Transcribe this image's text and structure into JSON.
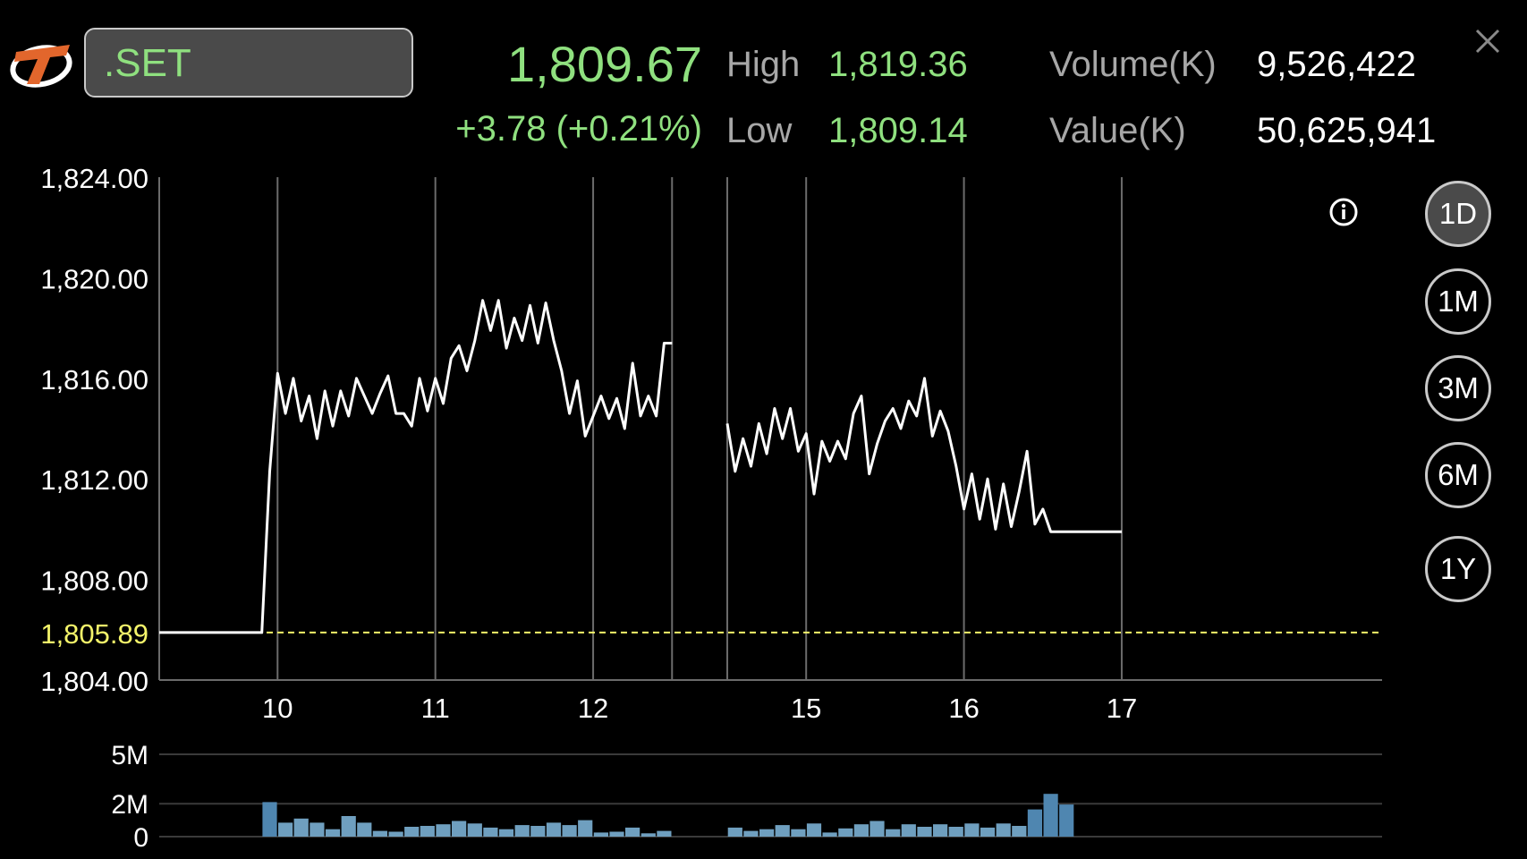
{
  "header": {
    "symbol": ".SET",
    "last": "1,809.67",
    "change": "+3.78 (+0.21%)",
    "high_label": "High",
    "high_value": "1,819.36",
    "low_label": "Low",
    "low_value": "1,809.14",
    "volume_label": "Volume(K)",
    "volume_value": "9,526,422",
    "value_label": "Value(K)",
    "value_value": "50,625,941"
  },
  "periods": [
    {
      "label": "1D",
      "active": true
    },
    {
      "label": "1M",
      "active": false
    },
    {
      "label": "3M",
      "active": false
    },
    {
      "label": "6M",
      "active": false
    },
    {
      "label": "1Y",
      "active": false
    }
  ],
  "icons": {
    "logo": "brand-logo-icon",
    "close": "close-icon",
    "info": "info-icon"
  },
  "colors": {
    "up": "#8fe07f",
    "line": "#ffffff",
    "prev_close": "#f4f46a",
    "volume_bar": "#4f86b0",
    "volume_bar_light": "#6f9fbf",
    "grid": "#6b6b6b"
  },
  "chart_data": [
    {
      "type": "line",
      "ylim": [
        1804,
        1824
      ],
      "yticks": [
        "1,824.00",
        "1,820.00",
        "1,816.00",
        "1,812.00",
        "1,808.00",
        "1,804.00"
      ],
      "ytick_values": [
        1824,
        1820,
        1816,
        1812,
        1808,
        1804
      ],
      "reference_label": "1,805.89",
      "reference_value": 1805.89,
      "xlim": [
        9.25,
        17
      ],
      "xticks": [
        "10",
        "11",
        "12",
        "15",
        "16",
        "17"
      ],
      "xtick_values": [
        10,
        11,
        12,
        13.35,
        14.35,
        15.35
      ],
      "session_breaks": [
        12.5,
        12.85
      ],
      "series": [
        {
          "segment": "morning",
          "points": [
            [
              9.25,
              1805.89
            ],
            [
              9.9,
              1805.89
            ],
            [
              9.95,
              1812.3
            ],
            [
              10.0,
              1816.2
            ],
            [
              10.05,
              1814.6
            ],
            [
              10.1,
              1816.0
            ],
            [
              10.15,
              1814.3
            ],
            [
              10.2,
              1815.3
            ],
            [
              10.25,
              1813.6
            ],
            [
              10.3,
              1815.5
            ],
            [
              10.35,
              1814.1
            ],
            [
              10.4,
              1815.5
            ],
            [
              10.45,
              1814.5
            ],
            [
              10.5,
              1816.0
            ],
            [
              10.55,
              1815.3
            ],
            [
              10.6,
              1814.6
            ],
            [
              10.65,
              1815.4
            ],
            [
              10.7,
              1816.1
            ],
            [
              10.75,
              1814.6
            ],
            [
              10.8,
              1814.6
            ],
            [
              10.85,
              1814.1
            ],
            [
              10.9,
              1816.0
            ],
            [
              10.95,
              1814.7
            ],
            [
              11.0,
              1816.0
            ],
            [
              11.05,
              1815.0
            ],
            [
              11.1,
              1816.8
            ],
            [
              11.15,
              1817.3
            ],
            [
              11.2,
              1816.3
            ],
            [
              11.25,
              1817.5
            ],
            [
              11.3,
              1819.1
            ],
            [
              11.35,
              1817.9
            ],
            [
              11.4,
              1819.1
            ],
            [
              11.45,
              1817.2
            ],
            [
              11.5,
              1818.4
            ],
            [
              11.55,
              1817.5
            ],
            [
              11.6,
              1818.9
            ],
            [
              11.65,
              1817.4
            ],
            [
              11.7,
              1819.0
            ],
            [
              11.75,
              1817.5
            ],
            [
              11.8,
              1816.3
            ],
            [
              11.85,
              1814.6
            ],
            [
              11.9,
              1815.9
            ],
            [
              11.95,
              1813.7
            ],
            [
              12.0,
              1814.5
            ],
            [
              12.05,
              1815.3
            ],
            [
              12.1,
              1814.4
            ],
            [
              12.15,
              1815.2
            ],
            [
              12.2,
              1814.0
            ],
            [
              12.25,
              1816.6
            ],
            [
              12.3,
              1814.5
            ],
            [
              12.35,
              1815.3
            ],
            [
              12.4,
              1814.5
            ],
            [
              12.45,
              1817.4
            ],
            [
              12.5,
              1817.4
            ]
          ]
        },
        {
          "segment": "afternoon",
          "points": [
            [
              12.85,
              1814.2
            ],
            [
              12.9,
              1812.3
            ],
            [
              12.95,
              1813.6
            ],
            [
              13.0,
              1812.5
            ],
            [
              13.05,
              1814.2
            ],
            [
              13.1,
              1813.0
            ],
            [
              13.15,
              1814.8
            ],
            [
              13.2,
              1813.6
            ],
            [
              13.25,
              1814.8
            ],
            [
              13.3,
              1813.1
            ],
            [
              13.35,
              1813.8
            ],
            [
              13.4,
              1811.4
            ],
            [
              13.45,
              1813.5
            ],
            [
              13.5,
              1812.7
            ],
            [
              13.55,
              1813.5
            ],
            [
              13.6,
              1812.8
            ],
            [
              13.65,
              1814.6
            ],
            [
              13.7,
              1815.3
            ],
            [
              13.75,
              1812.2
            ],
            [
              13.8,
              1813.4
            ],
            [
              13.85,
              1814.3
            ],
            [
              13.9,
              1814.8
            ],
            [
              13.95,
              1814.0
            ],
            [
              14.0,
              1815.1
            ],
            [
              14.05,
              1814.5
            ],
            [
              14.1,
              1816.0
            ],
            [
              14.15,
              1813.7
            ],
            [
              14.2,
              1814.7
            ],
            [
              14.25,
              1813.9
            ],
            [
              14.3,
              1812.5
            ],
            [
              14.35,
              1810.8
            ],
            [
              14.4,
              1812.2
            ],
            [
              14.45,
              1810.4
            ],
            [
              14.5,
              1812.0
            ],
            [
              14.55,
              1810.0
            ],
            [
              14.6,
              1811.8
            ],
            [
              14.65,
              1810.1
            ],
            [
              14.7,
              1811.5
            ],
            [
              14.75,
              1813.1
            ],
            [
              14.8,
              1810.2
            ],
            [
              14.85,
              1810.8
            ],
            [
              14.9,
              1809.9
            ],
            [
              14.95,
              1809.9
            ],
            [
              15.35,
              1809.9
            ]
          ]
        }
      ]
    },
    {
      "type": "bar",
      "ylim": [
        0,
        5
      ],
      "yticks": [
        "5M",
        "2M",
        "0"
      ],
      "ytick_values": [
        5,
        2,
        0
      ],
      "unit": "M",
      "series": [
        {
          "segment": "morning",
          "x_start": 9.95,
          "x_step": 0.1,
          "values": [
            2.1,
            0.85,
            1.1,
            0.85,
            0.45,
            1.25,
            0.85,
            0.35,
            0.3,
            0.6,
            0.65,
            0.75,
            0.95,
            0.8,
            0.55,
            0.45,
            0.7,
            0.65,
            0.85,
            0.7,
            1.0,
            0.25,
            0.3,
            0.55,
            0.2,
            0.35
          ]
        },
        {
          "segment": "afternoon",
          "x_start": 12.9,
          "x_step": 0.1,
          "values": [
            0.55,
            0.35,
            0.45,
            0.7,
            0.45,
            0.8,
            0.25,
            0.5,
            0.75,
            0.95,
            0.45,
            0.75,
            0.6,
            0.75,
            0.6,
            0.8,
            0.55,
            0.8,
            0.65,
            1.65,
            2.6,
            1.95
          ]
        }
      ]
    }
  ]
}
